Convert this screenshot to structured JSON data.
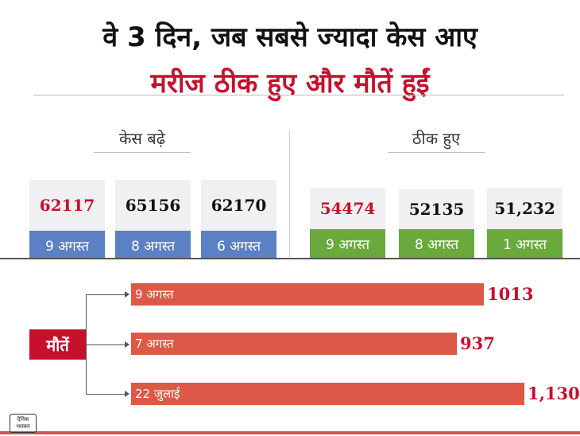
{
  "title": "वे 3 दिन, जब सबसे ज्यादा केस आए",
  "subtitle": "मरीज ठीक हुए और मौतें हुईं",
  "cases_section": {
    "label": "केस बढ़े",
    "cards": [
      {
        "value": "62117",
        "date": "9 अगस्त"
      },
      {
        "value": "65156",
        "date": "8 अगस्त"
      },
      {
        "value": "62170",
        "date": "6 अगस्त"
      }
    ]
  },
  "recovered_section": {
    "label": "ठीक हुए",
    "cards": [
      {
        "value": "54474",
        "date": "9 अगस्त"
      },
      {
        "value": "52135",
        "date": "8 अगस्त"
      },
      {
        "value": "51,232",
        "date": "1 अगस्त"
      }
    ]
  },
  "deaths_section": {
    "label": "मौतें",
    "bars": [
      {
        "date": "9 अगस्त",
        "value_text": "1013"
      },
      {
        "date": "7 अगस्त",
        "value_text": "937"
      },
      {
        "date": "22 जुलाई",
        "value_text": "1,130"
      }
    ]
  },
  "logo_text": "दैनिक भास्कर",
  "colors": {
    "accent_red": "#c8102e",
    "bar_red": "#dd5846",
    "blue": "#5b80c4",
    "green": "#6aaa3d"
  },
  "chart_data": [
    {
      "type": "table",
      "title": "केस बढ़े",
      "categories": [
        "9 अगस्त",
        "8 अगस्त",
        "6 अगस्त"
      ],
      "values": [
        62117,
        65156,
        62170
      ]
    },
    {
      "type": "table",
      "title": "ठीक हुए",
      "categories": [
        "9 अगस्त",
        "8 अगस्त",
        "1 अगस्त"
      ],
      "values": [
        54474,
        52135,
        51232
      ]
    },
    {
      "type": "bar",
      "title": "मौतें",
      "categories": [
        "9 अगस्त",
        "7 अगस्त",
        "22 जुलाई"
      ],
      "values": [
        1013,
        937,
        1130
      ]
    }
  ]
}
